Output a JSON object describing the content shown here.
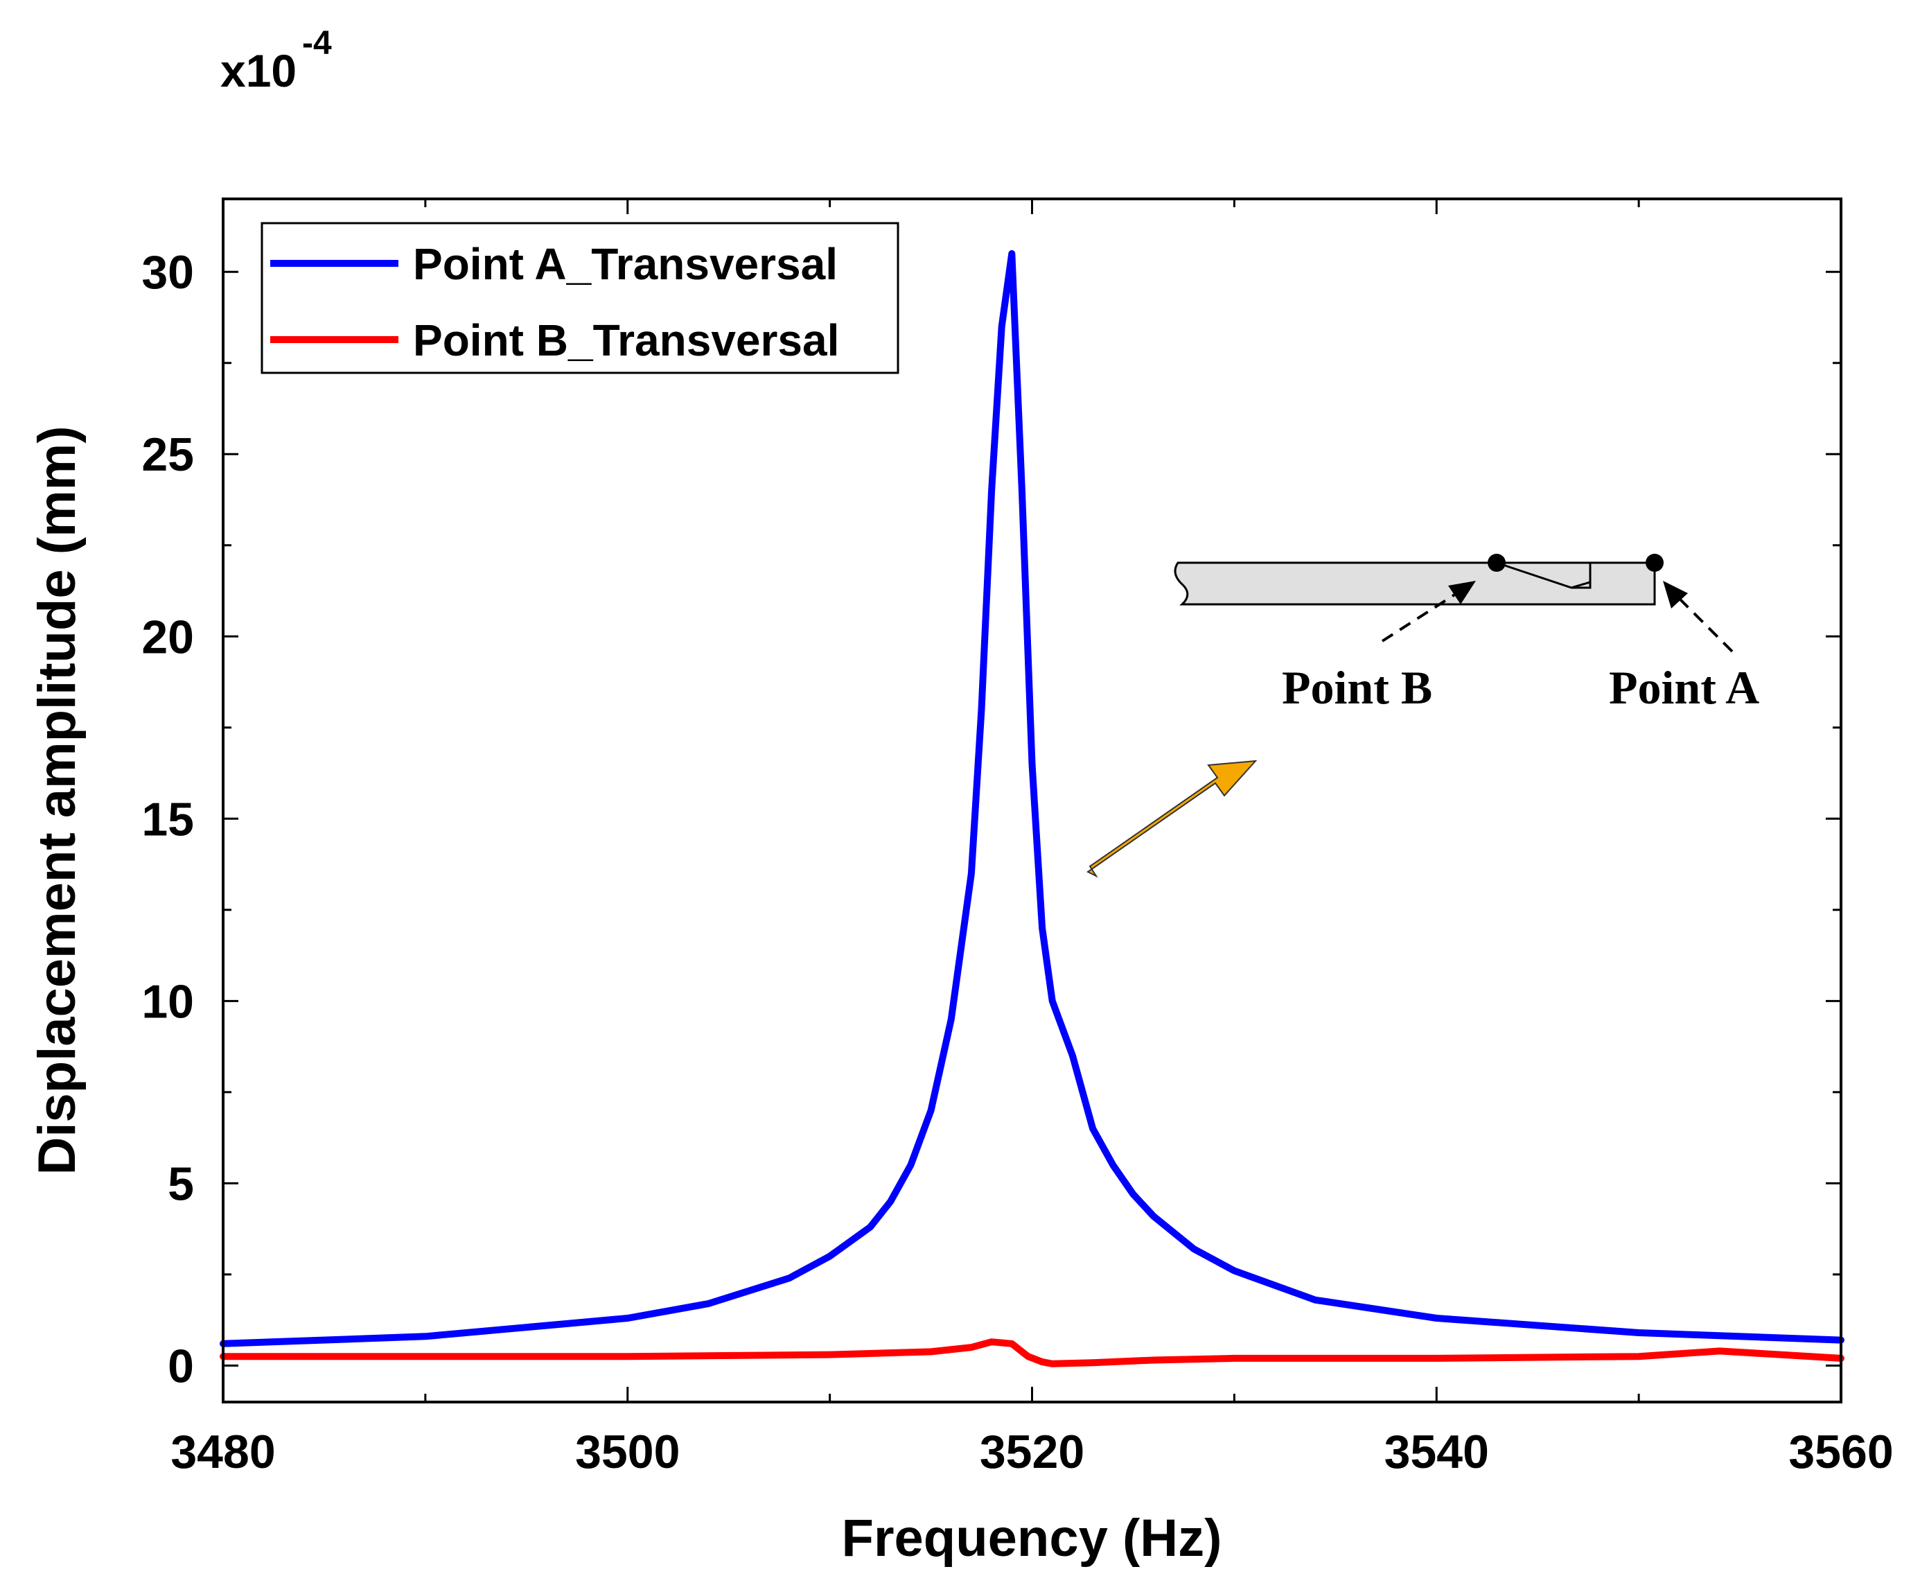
{
  "chart_data": {
    "type": "line",
    "title": "",
    "xlabel": "Frequency (Hz)",
    "ylabel": "Displacement amplitude (mm)",
    "y_multiplier": "x10",
    "y_multiplier_exp": "-4",
    "xlim": [
      3480,
      3560
    ],
    "ylim": [
      -1,
      32
    ],
    "x_ticks": [
      3480,
      3500,
      3520,
      3540,
      3560
    ],
    "y_ticks": [
      0,
      5,
      10,
      15,
      20,
      25,
      30
    ],
    "legend_position": "top-left",
    "series": [
      {
        "name": "Point A_Transversal",
        "color": "#0000ff",
        "x": [
          3480,
          3490,
          3500,
          3504,
          3508,
          3510,
          3512,
          3513,
          3514,
          3515,
          3516,
          3517,
          3517.5,
          3518,
          3518.5,
          3519,
          3519.5,
          3520,
          3520.5,
          3521,
          3522,
          3523,
          3524,
          3525,
          3526,
          3528,
          3530,
          3534,
          3540,
          3550,
          3560
        ],
        "y": [
          0.6,
          0.8,
          1.3,
          1.7,
          2.4,
          3.0,
          3.8,
          4.5,
          5.5,
          7.0,
          9.5,
          13.5,
          18.0,
          24.0,
          28.5,
          30.5,
          24.0,
          16.5,
          12.0,
          10.0,
          8.5,
          6.5,
          5.5,
          4.7,
          4.1,
          3.2,
          2.6,
          1.8,
          1.3,
          0.9,
          0.7
        ]
      },
      {
        "name": "Point B_Transversal",
        "color": "#ff0000",
        "x": [
          3480,
          3490,
          3500,
          3510,
          3515,
          3517,
          3518,
          3519,
          3519.8,
          3520.5,
          3521,
          3523,
          3526,
          3530,
          3540,
          3550,
          3554,
          3560
        ],
        "y": [
          0.25,
          0.25,
          0.25,
          0.3,
          0.38,
          0.5,
          0.65,
          0.6,
          0.25,
          0.1,
          0.05,
          0.08,
          0.15,
          0.2,
          0.2,
          0.25,
          0.4,
          0.2
        ]
      }
    ],
    "annotations": {
      "point_b_label": "Point B",
      "point_a_label": "Point A"
    }
  },
  "colors": {
    "arrow": "#f5a800",
    "inset_fill": "#e0e0e0"
  }
}
